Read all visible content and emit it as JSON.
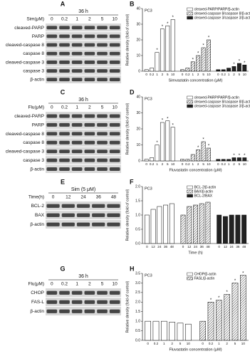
{
  "blots": [
    {
      "panel": "A",
      "header": "36 h",
      "lane_title": "Sim(μM)",
      "lanes": [
        "0",
        "0.2",
        "1",
        "2",
        "5",
        "10"
      ],
      "rows": [
        "cleaved-PARP",
        "PARP",
        "cleaved-caspase 8",
        "caspase 8",
        "cleaved-caspase 3",
        "caspase 3",
        "β-actin"
      ]
    },
    {
      "panel": "C",
      "header": "36 h",
      "lane_title": "Flu(μM)",
      "lanes": [
        "0",
        "0.2",
        "1",
        "2",
        "5",
        "10"
      ],
      "rows": [
        "cleaved-PARP",
        "PARP",
        "cleaved-caspase 8",
        "caspase 8",
        "cleaved-caspase 3",
        "caspase 3",
        "β-actin"
      ]
    },
    {
      "panel": "E",
      "header": "Sim (5 μM)",
      "lane_title": "Time(h)",
      "lanes": [
        "0",
        "12",
        "24",
        "36",
        "48"
      ],
      "rows": [
        "BCL-2",
        "BAX",
        "β-actin"
      ]
    },
    {
      "panel": "G",
      "header": "36 h",
      "lane_title": "Flu(μM)",
      "lanes": [
        "0",
        "0.2",
        "1",
        "2",
        "5",
        "10"
      ],
      "rows": [
        "CHOP",
        "FAS-L",
        "β-actin"
      ]
    }
  ],
  "chart_data": [
    {
      "type": "bar",
      "panel": "B",
      "subtitle": "PC3",
      "x_label": "Simvastatin concentration (μM)",
      "y_label": "Relative density (fold of control)",
      "categories": [
        "0",
        "0.2",
        "1",
        "2",
        "5",
        "10"
      ],
      "ylim": [
        0,
        40
      ],
      "yticks": [
        0,
        10,
        20,
        30,
        40
      ],
      "series": [
        {
          "name": "cleaved-PARP/PARP/β-actin",
          "color": "#ffffff",
          "pattern": "solid",
          "values": [
            1,
            2,
            12,
            27,
            29,
            33
          ],
          "sig": [
            null,
            null,
            "*",
            "*",
            "*",
            "*"
          ]
        },
        {
          "name": "cleaved-caspase 8/caspase 8/β-actin",
          "color": "#444444",
          "pattern": "hatch",
          "values": [
            1,
            2,
            6,
            10,
            15,
            20
          ],
          "sig": [
            null,
            null,
            "*",
            "*",
            "*",
            "*"
          ]
        },
        {
          "name": "cleaved-caspase 3/caspase 3/β-actin",
          "color": "#222222",
          "pattern": "solid",
          "values": [
            1,
            1,
            2,
            3,
            5,
            4
          ],
          "sig": [
            null,
            null,
            null,
            "*",
            "*",
            "*"
          ]
        }
      ]
    },
    {
      "type": "bar",
      "panel": "D",
      "subtitle": "PC3",
      "x_label": "Fluvastatin concentration (μM)",
      "y_label": "Relative density (fold of control)",
      "categories": [
        "0",
        "0.2",
        "1",
        "2",
        "5",
        "10"
      ],
      "ylim": [
        0,
        40
      ],
      "yticks": [
        0,
        10,
        20,
        30,
        40
      ],
      "series": [
        {
          "name": "cleaved-PARP/PARP/β-actin",
          "color": "#ffffff",
          "pattern": "solid",
          "values": [
            1,
            2,
            10,
            24,
            25,
            21
          ],
          "sig": [
            null,
            null,
            "*",
            "*",
            "*",
            "*"
          ]
        },
        {
          "name": "cleaved-caspase 8/caspase 8/β-actin",
          "color": "#444444",
          "pattern": "hatch",
          "values": [
            1,
            1,
            4,
            7,
            12,
            8
          ],
          "sig": [
            null,
            null,
            null,
            "*",
            "*",
            "*"
          ]
        },
        {
          "name": "cleaved-caspase 3/caspase 3/β-actin",
          "color": "#222222",
          "pattern": "solid",
          "values": [
            1,
            1,
            1,
            2,
            2,
            2
          ],
          "sig": [
            null,
            null,
            null,
            "*",
            "*",
            "*"
          ]
        }
      ]
    },
    {
      "type": "bar",
      "panel": "F",
      "subtitle": "PC3",
      "x_label": "Time (h)",
      "y_label": "Relative density (fold of control)",
      "categories": [
        "0",
        "12",
        "24",
        "36",
        "48"
      ],
      "ylim": [
        0,
        2
      ],
      "yticks": [
        {
          "value": 0,
          "label": "0.0"
        },
        0.5,
        {
          "value": 1,
          "label": "1.0"
        },
        1.5,
        {
          "value": 2,
          "label": "2.0"
        }
      ],
      "series": [
        {
          "name": "BCL-2/β-actin",
          "color": "#ffffff",
          "pattern": "solid",
          "values": [
            1.0,
            1.2,
            1.3,
            1.35,
            1.4
          ]
        },
        {
          "name": "BAX/β-actin",
          "color": "#444444",
          "pattern": "hatch",
          "values": [
            1.0,
            1.3,
            1.35,
            1.4,
            1.45
          ]
        },
        {
          "name": "BCL-2/BAX",
          "color": "#222222",
          "pattern": "solid",
          "values": [
            1.0,
            0.95,
            1.0,
            1.0,
            1.0
          ]
        }
      ]
    },
    {
      "type": "bar",
      "panel": "H",
      "subtitle": "PC3",
      "x_label": "Fluvastatin concentration (μM)",
      "y_label": "Relative density (fold of control)",
      "categories": [
        "0",
        "0.2",
        "1",
        "2",
        "5",
        "10"
      ],
      "ylim": [
        0,
        3.5
      ],
      "yticks": [
        {
          "value": 0,
          "label": "0.0"
        },
        0.5,
        {
          "value": 1,
          "label": "1.0"
        },
        1.5,
        {
          "value": 2,
          "label": "2.0"
        },
        2.5,
        {
          "value": 3,
          "label": "3.0"
        },
        3.5
      ],
      "series": [
        {
          "name": "CHOP/β-actin",
          "color": "#ffffff",
          "pattern": "solid",
          "values": [
            1.0,
            1.0,
            1.0,
            0.95,
            0.9,
            0.85
          ]
        },
        {
          "name": "FASL/β-actin",
          "color": "#444444",
          "pattern": "hatch",
          "values": [
            1.0,
            2.0,
            2.1,
            2.4,
            3.0,
            3.4
          ],
          "sig": [
            null,
            "*",
            "*",
            "*",
            "*",
            "*"
          ]
        }
      ]
    }
  ]
}
